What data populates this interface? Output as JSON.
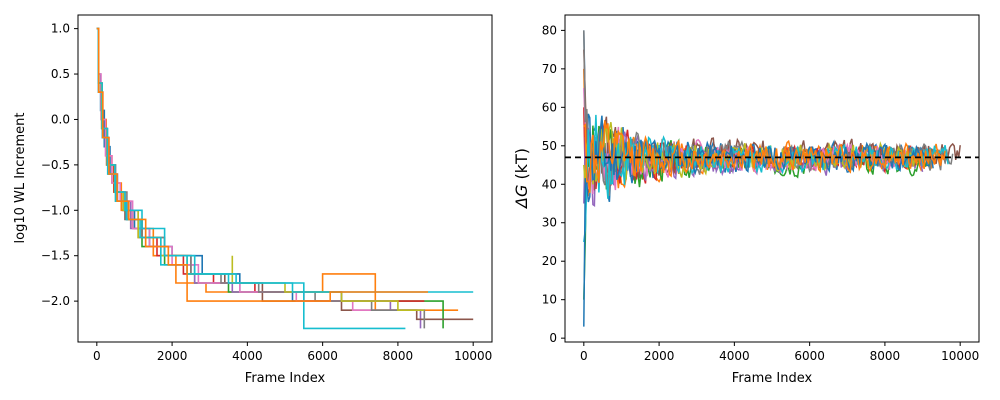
{
  "chart_data": [
    {
      "type": "line",
      "xlabel": "Frame Index",
      "ylabel": "log10 WL Increment",
      "xlim": [
        -500,
        10500
      ],
      "ylim": [
        -2.45,
        1.15
      ],
      "xticks": [
        0,
        2000,
        4000,
        6000,
        8000,
        10000
      ],
      "xtick_labels": [
        "0",
        "2000",
        "4000",
        "6000",
        "8000",
        "10000"
      ],
      "yticks": [
        1.0,
        0.5,
        0.0,
        -0.5,
        -1.0,
        -1.5,
        -2.0
      ],
      "ytick_labels": [
        "1.0",
        "0.5",
        "0.0",
        "−0.5",
        "−1.0",
        "−1.5",
        "−2.0"
      ],
      "grid": false,
      "step": true,
      "series": [
        {
          "color": "#1f77b4",
          "points": [
            [
              0,
              1.0
            ],
            [
              40,
              0.5
            ],
            [
              100,
              0.1
            ],
            [
              200,
              -0.3
            ],
            [
              350,
              -0.6
            ],
            [
              500,
              -0.8
            ],
            [
              700,
              -1.0
            ],
            [
              1000,
              -1.2
            ],
            [
              1400,
              -1.4
            ],
            [
              2000,
              -1.5
            ],
            [
              2800,
              -1.7
            ],
            [
              3800,
              -1.9
            ],
            [
              5200,
              -2.0
            ],
            [
              6000,
              -2.0
            ]
          ]
        },
        {
          "color": "#ff7f0e",
          "points": [
            [
              0,
              1.0
            ],
            [
              40,
              0.4
            ],
            [
              120,
              0.0
            ],
            [
              250,
              -0.4
            ],
            [
              400,
              -0.7
            ],
            [
              650,
              -1.0
            ],
            [
              950,
              -1.2
            ],
            [
              1500,
              -1.5
            ],
            [
              2100,
              -1.8
            ],
            [
              2900,
              -1.9
            ],
            [
              4000,
              -1.9
            ],
            [
              6000,
              -1.7
            ],
            [
              7400,
              -1.9
            ],
            [
              7400,
              -2.1
            ],
            [
              9600,
              -2.1
            ]
          ]
        },
        {
          "color": "#2ca02c",
          "points": [
            [
              0,
              1.0
            ],
            [
              50,
              0.3
            ],
            [
              150,
              -0.2
            ],
            [
              300,
              -0.6
            ],
            [
              500,
              -0.9
            ],
            [
              800,
              -1.1
            ],
            [
              1200,
              -1.4
            ],
            [
              1800,
              -1.6
            ],
            [
              2600,
              -1.8
            ],
            [
              3500,
              -1.9
            ],
            [
              4800,
              -1.9
            ],
            [
              6500,
              -2.0
            ],
            [
              8800,
              -2.0
            ],
            [
              9200,
              -2.3
            ]
          ]
        },
        {
          "color": "#d62728",
          "points": [
            [
              0,
              1.0
            ],
            [
              40,
              0.4
            ],
            [
              130,
              -0.1
            ],
            [
              260,
              -0.5
            ],
            [
              450,
              -0.8
            ],
            [
              700,
              -1.0
            ],
            [
              1100,
              -1.3
            ],
            [
              1600,
              -1.5
            ],
            [
              2300,
              -1.7
            ],
            [
              3100,
              -1.8
            ],
            [
              4200,
              -1.9
            ],
            [
              5500,
              -2.0
            ],
            [
              7200,
              -2.0
            ],
            [
              8700,
              -2.0
            ]
          ]
        },
        {
          "color": "#9467bd",
          "points": [
            [
              0,
              1.0
            ],
            [
              50,
              0.3
            ],
            [
              160,
              -0.2
            ],
            [
              320,
              -0.6
            ],
            [
              550,
              -0.9
            ],
            [
              900,
              -1.2
            ],
            [
              1300,
              -1.4
            ],
            [
              1900,
              -1.6
            ],
            [
              2600,
              -1.8
            ],
            [
              3600,
              -1.9
            ],
            [
              5000,
              -1.9
            ],
            [
              6500,
              -2.0
            ],
            [
              7800,
              -2.1
            ],
            [
              8600,
              -2.3
            ]
          ]
        },
        {
          "color": "#8c564b",
          "points": [
            [
              0,
              1.0
            ],
            [
              45,
              0.4
            ],
            [
              140,
              -0.1
            ],
            [
              280,
              -0.5
            ],
            [
              480,
              -0.8
            ],
            [
              750,
              -1.1
            ],
            [
              1200,
              -1.3
            ],
            [
              1800,
              -1.5
            ],
            [
              2500,
              -1.7
            ],
            [
              3400,
              -1.8
            ],
            [
              4400,
              -2.0
            ],
            [
              6500,
              -2.1
            ],
            [
              8500,
              -2.2
            ],
            [
              10000,
              -2.2
            ]
          ]
        },
        {
          "color": "#e377c2",
          "points": [
            [
              0,
              1.0
            ],
            [
              40,
              0.5
            ],
            [
              110,
              0.0
            ],
            [
              230,
              -0.4
            ],
            [
              400,
              -0.7
            ],
            [
              620,
              -0.9
            ],
            [
              950,
              -1.2
            ],
            [
              1400,
              -1.4
            ],
            [
              2000,
              -1.6
            ],
            [
              2700,
              -1.8
            ],
            [
              3800,
              -1.9
            ],
            [
              5300,
              -2.0
            ],
            [
              6800,
              -2.1
            ],
            [
              8000,
              -2.1
            ]
          ]
        },
        {
          "color": "#7f7f7f",
          "points": [
            [
              0,
              1.0
            ],
            [
              50,
              0.3
            ],
            [
              150,
              -0.2
            ],
            [
              300,
              -0.5
            ],
            [
              500,
              -0.8
            ],
            [
              800,
              -1.1
            ],
            [
              1200,
              -1.3
            ],
            [
              1800,
              -1.5
            ],
            [
              2500,
              -1.7
            ],
            [
              3300,
              -1.8
            ],
            [
              4300,
              -1.9
            ],
            [
              5800,
              -2.0
            ],
            [
              7300,
              -2.1
            ],
            [
              8700,
              -2.3
            ]
          ]
        },
        {
          "color": "#bcbd22",
          "points": [
            [
              0,
              1.0
            ],
            [
              40,
              0.4
            ],
            [
              130,
              -0.1
            ],
            [
              270,
              -0.5
            ],
            [
              470,
              -0.8
            ],
            [
              700,
              -1.0
            ],
            [
              1100,
              -1.3
            ],
            [
              1700,
              -1.5
            ],
            [
              2400,
              -1.7
            ],
            [
              3600,
              -1.5
            ],
            [
              3600,
              -1.8
            ],
            [
              5000,
              -1.9
            ],
            [
              6500,
              -2.0
            ],
            [
              8000,
              -2.1
            ],
            [
              8700,
              -2.1
            ]
          ]
        },
        {
          "color": "#17becf",
          "points": [
            [
              0,
              1.0
            ],
            [
              45,
              0.3
            ],
            [
              150,
              -0.2
            ],
            [
              290,
              -0.6
            ],
            [
              500,
              -0.9
            ],
            [
              780,
              -1.1
            ],
            [
              1150,
              -1.3
            ],
            [
              1700,
              -1.6
            ],
            [
              2400,
              -1.5
            ],
            [
              2400,
              -1.7
            ],
            [
              3500,
              -1.8
            ],
            [
              5500,
              -2.3
            ],
            [
              8200,
              -2.3
            ]
          ]
        },
        {
          "color": "#17becf",
          "points": [
            [
              0,
              1.0
            ],
            [
              40,
              0.4
            ],
            [
              140,
              -0.1
            ],
            [
              280,
              -0.5
            ],
            [
              480,
              -0.8
            ],
            [
              750,
              -1.0
            ],
            [
              1200,
              -1.2
            ],
            [
              1800,
              -1.5
            ],
            [
              2600,
              -1.7
            ],
            [
              3700,
              -1.8
            ],
            [
              5200,
              -1.9
            ],
            [
              7500,
              -1.9
            ],
            [
              10000,
              -1.9
            ]
          ]
        },
        {
          "color": "#ff7f0e",
          "points": [
            [
              0,
              1.0
            ],
            [
              50,
              0.3
            ],
            [
              160,
              -0.2
            ],
            [
              320,
              -0.6
            ],
            [
              540,
              -0.9
            ],
            [
              850,
              -1.1
            ],
            [
              1300,
              -1.4
            ],
            [
              1900,
              -1.6
            ],
            [
              2400,
              -2.0
            ],
            [
              4000,
              -2.0
            ],
            [
              6000,
              -2.0
            ],
            [
              6200,
              -1.9
            ],
            [
              8800,
              -1.9
            ]
          ]
        }
      ]
    },
    {
      "type": "line",
      "xlabel": "Frame Index",
      "ylabel_italic": "ΔG",
      "ylabel_rest": " (kT)",
      "xlim": [
        -500,
        10500
      ],
      "ylim": [
        -1,
        84
      ],
      "xticks": [
        0,
        2000,
        4000,
        6000,
        8000,
        10000
      ],
      "xtick_labels": [
        "0",
        "2000",
        "4000",
        "6000",
        "8000",
        "10000"
      ],
      "yticks": [
        0,
        10,
        20,
        30,
        40,
        50,
        60,
        70,
        80
      ],
      "ytick_labels": [
        "0",
        "10",
        "20",
        "30",
        "40",
        "50",
        "60",
        "70",
        "80"
      ],
      "grid": false,
      "reference_line": {
        "y": 47,
        "style": "dashed",
        "color": "#000000"
      },
      "series": [
        {
          "color": "#1f77b4",
          "start": 80,
          "settle": 47,
          "amp": 16,
          "n": 9000,
          "seed": 1
        },
        {
          "color": "#ff7f0e",
          "start": 70,
          "settle": 47,
          "amp": 15,
          "n": 9500,
          "seed": 2
        },
        {
          "color": "#2ca02c",
          "start": 10,
          "settle": 46,
          "amp": 17,
          "n": 9200,
          "seed": 3
        },
        {
          "color": "#d62728",
          "start": 60,
          "settle": 47,
          "amp": 15,
          "n": 8800,
          "seed": 4
        },
        {
          "color": "#9467bd",
          "start": 35,
          "settle": 46,
          "amp": 16,
          "n": 9000,
          "seed": 5
        },
        {
          "color": "#8c564b",
          "start": 75,
          "settle": 48,
          "amp": 14,
          "n": 10000,
          "seed": 6
        },
        {
          "color": "#e377c2",
          "start": 65,
          "settle": 47,
          "amp": 15,
          "n": 8600,
          "seed": 7
        },
        {
          "color": "#7f7f7f",
          "start": 80,
          "settle": 47,
          "amp": 14,
          "n": 9800,
          "seed": 8
        },
        {
          "color": "#bcbd22",
          "start": 45,
          "settle": 47,
          "amp": 15,
          "n": 8900,
          "seed": 9
        },
        {
          "color": "#17becf",
          "start": 25,
          "settle": 47,
          "amp": 16,
          "n": 9700,
          "seed": 10
        },
        {
          "color": "#1f77b4",
          "start": 3,
          "settle": 47,
          "amp": 15,
          "n": 9300,
          "seed": 11
        },
        {
          "color": "#ff7f0e",
          "start": 55,
          "settle": 47,
          "amp": 14,
          "n": 9600,
          "seed": 12
        }
      ]
    }
  ]
}
